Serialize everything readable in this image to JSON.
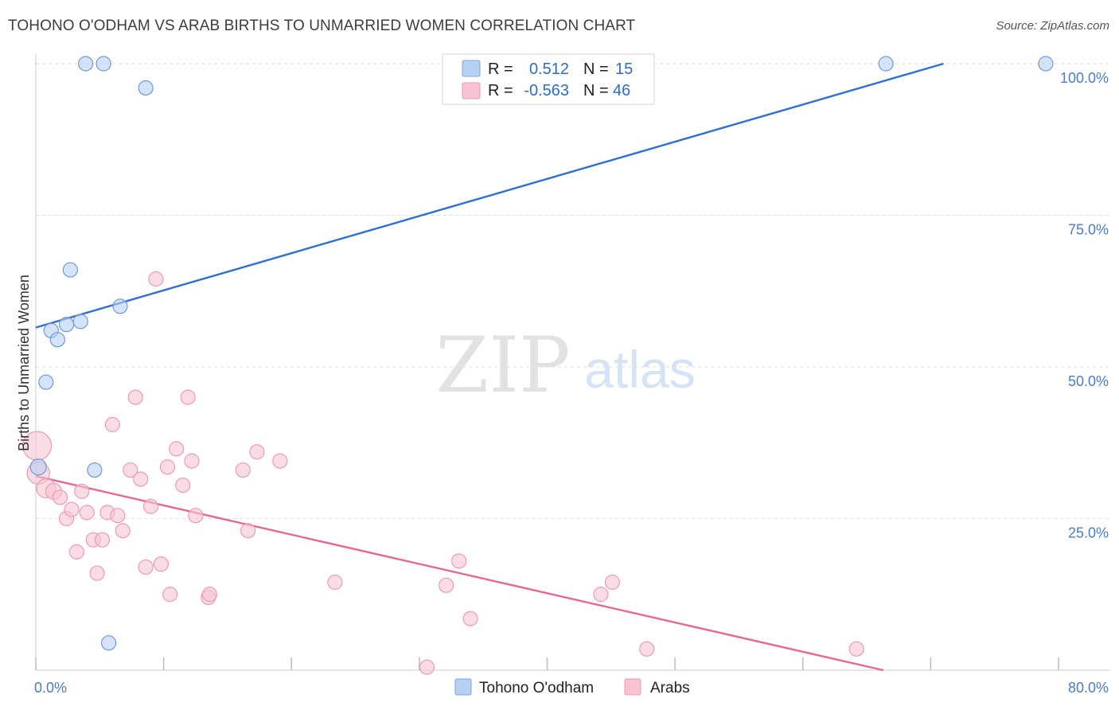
{
  "title": "TOHONO O'ODHAM VS ARAB BIRTHS TO UNMARRIED WOMEN CORRELATION CHART",
  "source": "Source: ZipAtlas.com",
  "watermark": {
    "zip": "ZIP",
    "atlas": "atlas"
  },
  "colors": {
    "blue": "#4a7cc7",
    "blue_fill": "#b8d1f3",
    "blue_line": "#2f6fcf",
    "pink_fill": "#f7c4d3",
    "pink_line": "#e5698f",
    "grid": "#dddddd"
  },
  "legend": {
    "r_label": "R =",
    "n_label": "N =",
    "rows": [
      {
        "r": "0.512",
        "n": "15"
      },
      {
        "r": "-0.563",
        "n": "46"
      }
    ]
  },
  "chart_data": {
    "type": "scatter",
    "title": "TOHONO O'ODHAM VS ARAB BIRTHS TO UNMARRIED WOMEN CORRELATION CHART",
    "xlabel": "",
    "ylabel": "Births to Unmarried Women",
    "xlim": [
      0,
      80
    ],
    "ylim": [
      0,
      100
    ],
    "x_tick_labels": [
      "0.0%",
      "80.0%"
    ],
    "y_ticks": [
      25,
      50,
      75,
      100
    ],
    "y_tick_labels": [
      "25.0%",
      "50.0%",
      "75.0%",
      "100.0%"
    ],
    "series": [
      {
        "name": "Tohono O'odham",
        "color": "blue",
        "points": [
          [
            0.2,
            33.5,
            10
          ],
          [
            0.8,
            47.5,
            9
          ],
          [
            1.2,
            56,
            9
          ],
          [
            1.7,
            54.5,
            9
          ],
          [
            2.4,
            57,
            9
          ],
          [
            2.7,
            66,
            9
          ],
          [
            3.5,
            57.5,
            9
          ],
          [
            4.6,
            33,
            9
          ],
          [
            5.7,
            4.5,
            9
          ],
          [
            6.6,
            60,
            9
          ],
          [
            3.9,
            100,
            9
          ],
          [
            5.3,
            100,
            9
          ],
          [
            8.6,
            96,
            9
          ],
          [
            66.5,
            100,
            9
          ],
          [
            79,
            100,
            9
          ]
        ],
        "trend": [
          [
            0,
            56.5
          ],
          [
            71,
            100
          ]
        ]
      },
      {
        "name": "Arabs",
        "color": "pink",
        "points": [
          [
            0.1,
            37,
            18
          ],
          [
            0.2,
            32.5,
            14
          ],
          [
            0.8,
            30,
            12
          ],
          [
            1.4,
            29.5,
            10
          ],
          [
            1.9,
            28.5,
            9
          ],
          [
            2.4,
            25,
            9
          ],
          [
            2.8,
            26.5,
            9
          ],
          [
            3.2,
            19.5,
            9
          ],
          [
            3.6,
            29.5,
            9
          ],
          [
            4.0,
            26,
            9
          ],
          [
            4.5,
            21.5,
            9
          ],
          [
            4.8,
            16,
            9
          ],
          [
            5.2,
            21.5,
            9
          ],
          [
            5.6,
            26,
            9
          ],
          [
            6.0,
            40.5,
            9
          ],
          [
            6.4,
            25.5,
            9
          ],
          [
            6.8,
            23,
            9
          ],
          [
            7.4,
            33,
            9
          ],
          [
            7.8,
            45,
            9
          ],
          [
            8.2,
            31.5,
            9
          ],
          [
            8.6,
            17,
            9
          ],
          [
            9.0,
            27,
            9
          ],
          [
            9.4,
            64.5,
            9
          ],
          [
            9.8,
            17.5,
            9
          ],
          [
            10.3,
            33.5,
            9
          ],
          [
            10.5,
            12.5,
            9
          ],
          [
            11.0,
            36.5,
            9
          ],
          [
            11.5,
            30.5,
            9
          ],
          [
            11.9,
            45,
            9
          ],
          [
            12.2,
            34.5,
            9
          ],
          [
            12.5,
            25.5,
            9
          ],
          [
            13.5,
            12,
            9
          ],
          [
            13.6,
            12.5,
            9
          ],
          [
            16.2,
            33,
            9
          ],
          [
            16.6,
            23,
            9
          ],
          [
            17.3,
            36,
            9
          ],
          [
            19.1,
            34.5,
            9
          ],
          [
            23.4,
            14.5,
            9
          ],
          [
            30.6,
            0.5,
            9
          ],
          [
            32.1,
            14,
            9
          ],
          [
            33.1,
            18,
            9
          ],
          [
            34.0,
            8.5,
            9
          ],
          [
            44.2,
            12.5,
            9
          ],
          [
            45.1,
            14.5,
            9
          ],
          [
            47.8,
            3.5,
            9
          ],
          [
            64.2,
            3.5,
            9
          ]
        ],
        "trend": [
          [
            0,
            32
          ],
          [
            66.3,
            0
          ]
        ]
      }
    ],
    "bottom_legend": [
      "Tohono O'odham",
      "Arabs"
    ]
  }
}
